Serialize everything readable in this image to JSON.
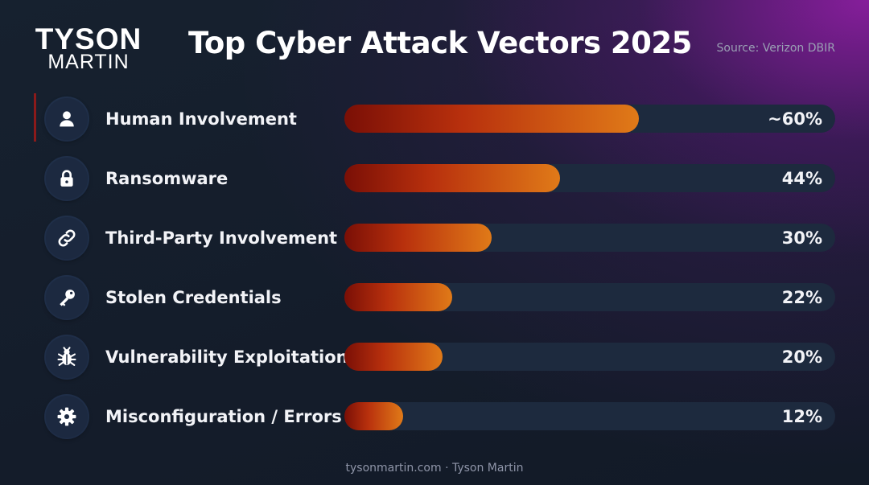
{
  "brand": {
    "top": "TYSON",
    "bottom": "MARTIN"
  },
  "source": "Source: Verizon DBIR",
  "footer": "tysonmartin.com · Tyson Martin",
  "chart_data": {
    "type": "bar",
    "orientation": "horizontal",
    "title": "Top Cyber Attack Vectors 2025",
    "xlim": [
      0,
      100
    ],
    "categories": [
      "Human Involvement",
      "Ransomware",
      "Third-Party Involvement",
      "Stolen Credentials",
      "Vulnerability Exploitation",
      "Misconfiguration / Errors"
    ],
    "values": [
      60,
      44,
      30,
      22,
      20,
      12
    ],
    "value_labels": [
      "~60%",
      "44%",
      "30%",
      "22%",
      "20%",
      "12%"
    ],
    "icons": [
      "user-icon",
      "lock-icon",
      "link-icon",
      "key-icon",
      "bug-icon",
      "gear-icon"
    ],
    "colors": {
      "bar_start": "#7a0f06",
      "bar_mid": "#b8300d",
      "bar_end": "#e07a18",
      "track": "#1d2a3e",
      "highlight": "#8b1a1a"
    },
    "highlighted_category": "Human Involvement"
  }
}
